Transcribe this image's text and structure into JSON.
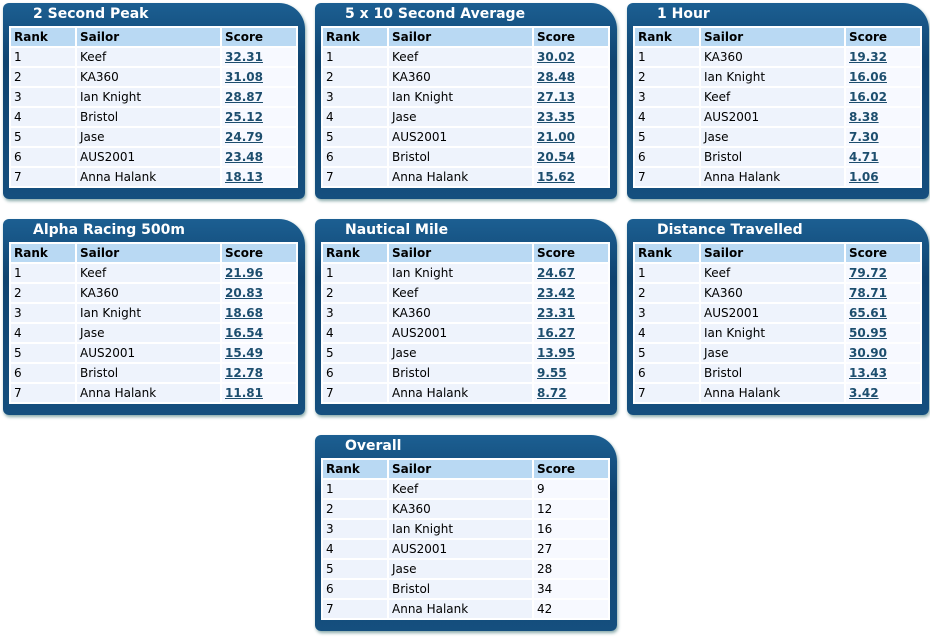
{
  "panels": [
    {
      "title": "2 Second Peak",
      "columns": [
        "Rank",
        "Sailor",
        "Score"
      ],
      "rows": [
        [
          "1",
          "Keef",
          "32.31"
        ],
        [
          "2",
          "KA360",
          "31.08"
        ],
        [
          "3",
          "Ian Knight",
          "28.87"
        ],
        [
          "4",
          "Bristol",
          "25.12"
        ],
        [
          "5",
          "Jase",
          "24.79"
        ],
        [
          "6",
          "AUS2001",
          "23.48"
        ],
        [
          "7",
          "Anna Halank",
          "18.13"
        ]
      ]
    },
    {
      "title": "5 x 10 Second Average",
      "columns": [
        "Rank",
        "Sailor",
        "Score"
      ],
      "rows": [
        [
          "1",
          "Keef",
          "30.02"
        ],
        [
          "2",
          "KA360",
          "28.48"
        ],
        [
          "3",
          "Ian Knight",
          "27.13"
        ],
        [
          "4",
          "Jase",
          "23.35"
        ],
        [
          "5",
          "AUS2001",
          "21.00"
        ],
        [
          "6",
          "Bristol",
          "20.54"
        ],
        [
          "7",
          "Anna Halank",
          "15.62"
        ]
      ]
    },
    {
      "title": "1 Hour",
      "columns": [
        "Rank",
        "Sailor",
        "Score"
      ],
      "rows": [
        [
          "1",
          "KA360",
          "19.32"
        ],
        [
          "2",
          "Ian Knight",
          "16.06"
        ],
        [
          "3",
          "Keef",
          "16.02"
        ],
        [
          "4",
          "AUS2001",
          "8.38"
        ],
        [
          "5",
          "Jase",
          "7.30"
        ],
        [
          "6",
          "Bristol",
          "4.71"
        ],
        [
          "7",
          "Anna Halank",
          "1.06"
        ]
      ]
    },
    {
      "title": "Alpha Racing 500m",
      "columns": [
        "Rank",
        "Sailor",
        "Score"
      ],
      "rows": [
        [
          "1",
          "Keef",
          "21.96"
        ],
        [
          "2",
          "KA360",
          "20.83"
        ],
        [
          "3",
          "Ian Knight",
          "18.68"
        ],
        [
          "4",
          "Jase",
          "16.54"
        ],
        [
          "5",
          "AUS2001",
          "15.49"
        ],
        [
          "6",
          "Bristol",
          "12.78"
        ],
        [
          "7",
          "Anna Halank",
          "11.81"
        ]
      ]
    },
    {
      "title": "Nautical Mile",
      "columns": [
        "Rank",
        "Sailor",
        "Score"
      ],
      "rows": [
        [
          "1",
          "Ian Knight",
          "24.67"
        ],
        [
          "2",
          "Keef",
          "23.42"
        ],
        [
          "3",
          "KA360",
          "23.31"
        ],
        [
          "4",
          "AUS2001",
          "16.27"
        ],
        [
          "5",
          "Jase",
          "13.95"
        ],
        [
          "6",
          "Bristol",
          "9.55"
        ],
        [
          "7",
          "Anna Halank",
          "8.72"
        ]
      ]
    },
    {
      "title": "Distance Travelled",
      "columns": [
        "Rank",
        "Sailor",
        "Score"
      ],
      "rows": [
        [
          "1",
          "Keef",
          "79.72"
        ],
        [
          "2",
          "KA360",
          "78.71"
        ],
        [
          "3",
          "AUS2001",
          "65.61"
        ],
        [
          "4",
          "Ian Knight",
          "50.95"
        ],
        [
          "5",
          "Jase",
          "30.90"
        ],
        [
          "6",
          "Bristol",
          "13.43"
        ],
        [
          "7",
          "Anna Halank",
          "3.42"
        ]
      ]
    },
    {
      "title": "Overall",
      "columns": [
        "Rank",
        "Sailor",
        "Score"
      ],
      "rows": [
        [
          "1",
          "Keef",
          "9"
        ],
        [
          "2",
          "KA360",
          "12"
        ],
        [
          "3",
          "Ian Knight",
          "16"
        ],
        [
          "4",
          "AUS2001",
          "27"
        ],
        [
          "5",
          "Jase",
          "28"
        ],
        [
          "6",
          "Bristol",
          "34"
        ],
        [
          "7",
          "Anna Halank",
          "42"
        ]
      ]
    }
  ]
}
